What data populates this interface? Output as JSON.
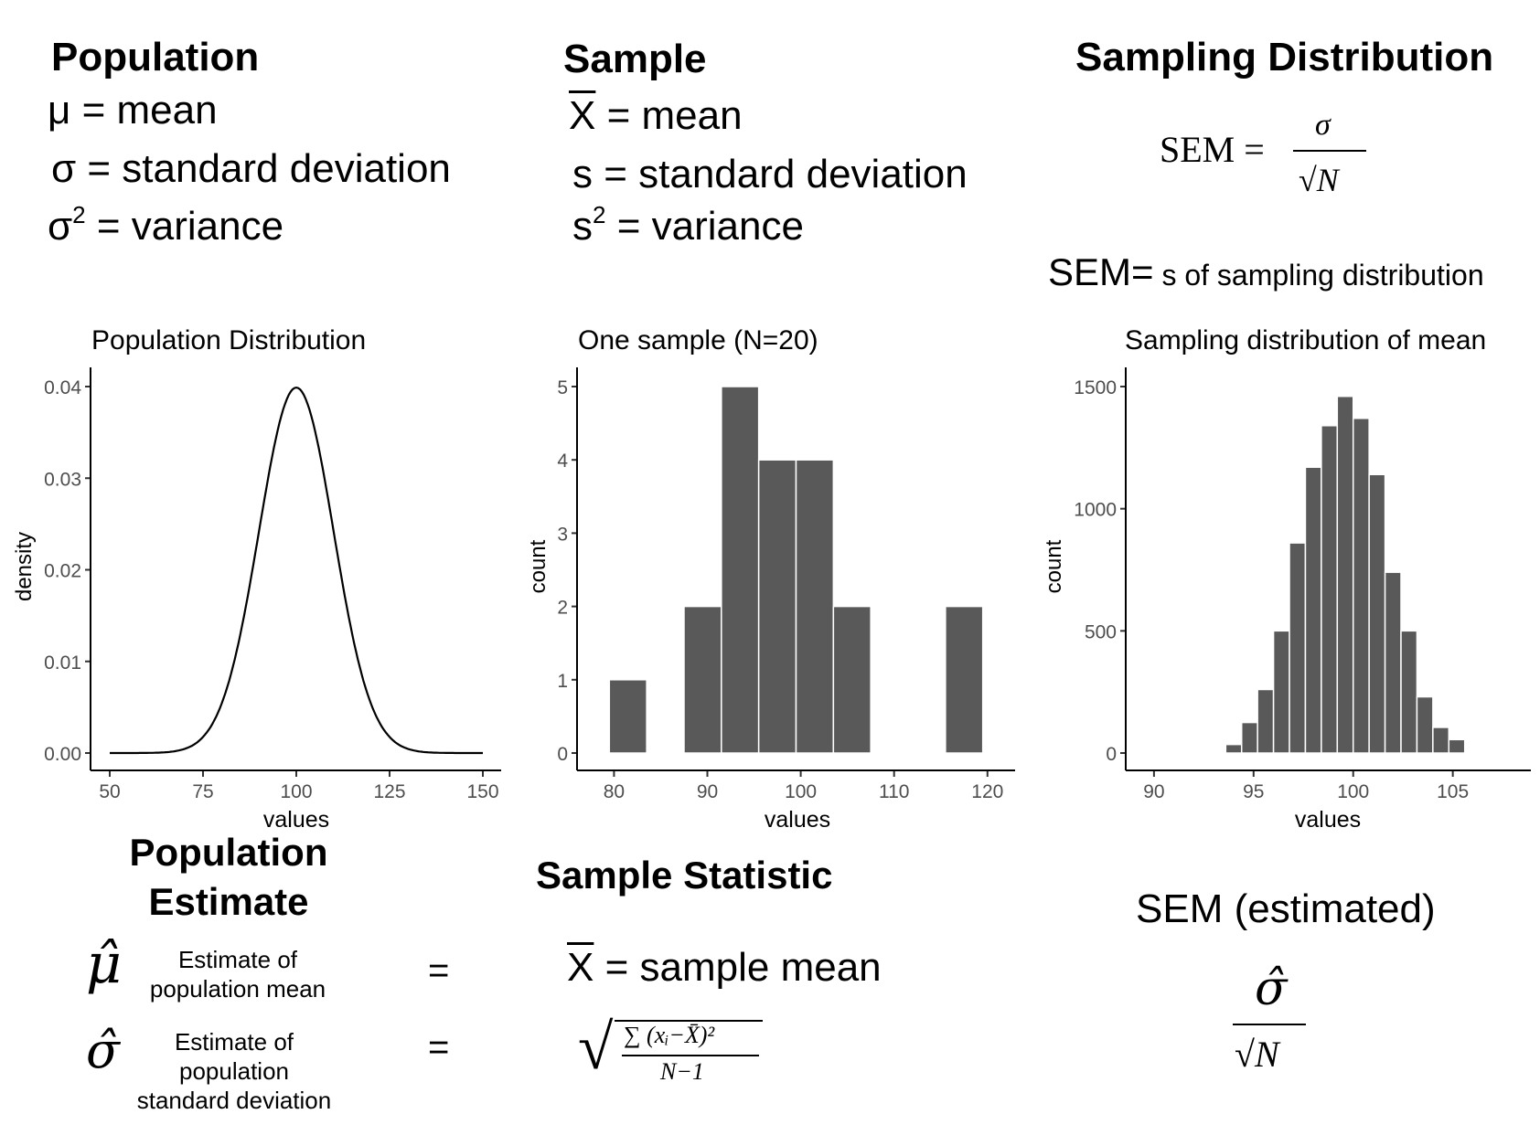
{
  "population": {
    "title": "Population",
    "mean_sym": "μ",
    "mean_text": " = mean",
    "sd_sym": "σ",
    "sd_text": " = standard deviation",
    "var_sym": "σ",
    "var_sup": "2",
    "var_text": " = variance"
  },
  "sample": {
    "title": "Sample",
    "mean_sym": "X",
    "mean_text": " = mean",
    "sd_sym": "s",
    "sd_text": " = standard deviation",
    "var_sym": "s",
    "var_sup": "2",
    "var_text": " = variance"
  },
  "sampling": {
    "title": "Sampling Distribution",
    "sem_lhs": "SEM =",
    "sem_num": "σ",
    "sem_den": "√N",
    "sem_def_big": "SEM=",
    "sem_def_small": " s of sampling distribution"
  },
  "chart_data": [
    {
      "type": "line",
      "title": "Population Distribution",
      "xlabel": "values",
      "ylabel": "density",
      "xlim": [
        50,
        150
      ],
      "ylim": [
        0,
        0.04
      ],
      "xticks": [
        "50",
        "75",
        "100",
        "125",
        "150"
      ],
      "yticks": [
        "0.00",
        "0.01",
        "0.02",
        "0.03",
        "0.04"
      ],
      "curve": {
        "distribution": "normal",
        "mean": 100,
        "sd": 10,
        "x_range": [
          50,
          150
        ]
      },
      "grid": false
    },
    {
      "type": "bar",
      "title": "One sample (N=20)",
      "xlabel": "values",
      "ylabel": "count",
      "xlim": [
        78,
        121
      ],
      "ylim": [
        0,
        5
      ],
      "xticks": [
        "80",
        "90",
        "100",
        "110",
        "120"
      ],
      "yticks": [
        "0",
        "1",
        "2",
        "3",
        "4",
        "5"
      ],
      "bins": [
        {
          "x0": 79.5,
          "x1": 83.5,
          "count": 1
        },
        {
          "x0": 87.5,
          "x1": 91.5,
          "count": 2
        },
        {
          "x0": 91.5,
          "x1": 95.5,
          "count": 5
        },
        {
          "x0": 95.5,
          "x1": 99.5,
          "count": 4
        },
        {
          "x0": 99.5,
          "x1": 103.5,
          "count": 4
        },
        {
          "x0": 103.5,
          "x1": 107.5,
          "count": 2
        },
        {
          "x0": 115.5,
          "x1": 119.5,
          "count": 2
        }
      ],
      "grid": false
    },
    {
      "type": "bar",
      "title": "Sampling distribution of mean",
      "xlabel": "values",
      "ylabel": "count",
      "xlim": [
        89.5,
        108
      ],
      "ylim": [
        0,
        1500
      ],
      "xticks": [
        "90",
        "95",
        "100",
        "105"
      ],
      "yticks": [
        "0",
        "500",
        "1000",
        "1500"
      ],
      "bins": [
        {
          "x0": 92.8,
          "x1": 93.6,
          "count": 5
        },
        {
          "x0": 93.6,
          "x1": 94.4,
          "count": 35
        },
        {
          "x0": 94.4,
          "x1": 95.2,
          "count": 125
        },
        {
          "x0": 95.2,
          "x1": 96.0,
          "count": 260
        },
        {
          "x0": 96.0,
          "x1": 96.8,
          "count": 500
        },
        {
          "x0": 96.8,
          "x1": 97.6,
          "count": 860
        },
        {
          "x0": 97.6,
          "x1": 98.4,
          "count": 1170
        },
        {
          "x0": 98.4,
          "x1": 99.2,
          "count": 1340
        },
        {
          "x0": 99.2,
          "x1": 100.0,
          "count": 1460
        },
        {
          "x0": 100.0,
          "x1": 100.8,
          "count": 1370
        },
        {
          "x0": 100.8,
          "x1": 101.6,
          "count": 1140
        },
        {
          "x0": 101.6,
          "x1": 102.4,
          "count": 740
        },
        {
          "x0": 102.4,
          "x1": 103.2,
          "count": 500
        },
        {
          "x0": 103.2,
          "x1": 104.0,
          "count": 230
        },
        {
          "x0": 104.0,
          "x1": 104.8,
          "count": 105
        },
        {
          "x0": 104.8,
          "x1": 105.6,
          "count": 55
        },
        {
          "x0": 105.6,
          "x1": 106.4,
          "count": 5
        }
      ],
      "grid": false
    }
  ],
  "estimate": {
    "title_line1": "Population",
    "title_line2": "Estimate",
    "mu_hat": "μ̂",
    "mu_desc_1": "Estimate of",
    "mu_desc_2": "population mean",
    "sigma_hat": "σ̂",
    "sigma_desc_1": "Estimate of",
    "sigma_desc_2": "population",
    "sigma_desc_3": "standard deviation",
    "equals": "="
  },
  "statistic": {
    "title": "Sample Statistic",
    "mean_sym": "X",
    "mean_text": " = sample mean",
    "sd_formula_num": "∑ (xᵢ−X̄)²",
    "sd_formula_den": "N−1",
    "radical": "√"
  },
  "sem_est": {
    "title": "SEM (estimated)",
    "num": "σ̂",
    "den": "√N"
  }
}
